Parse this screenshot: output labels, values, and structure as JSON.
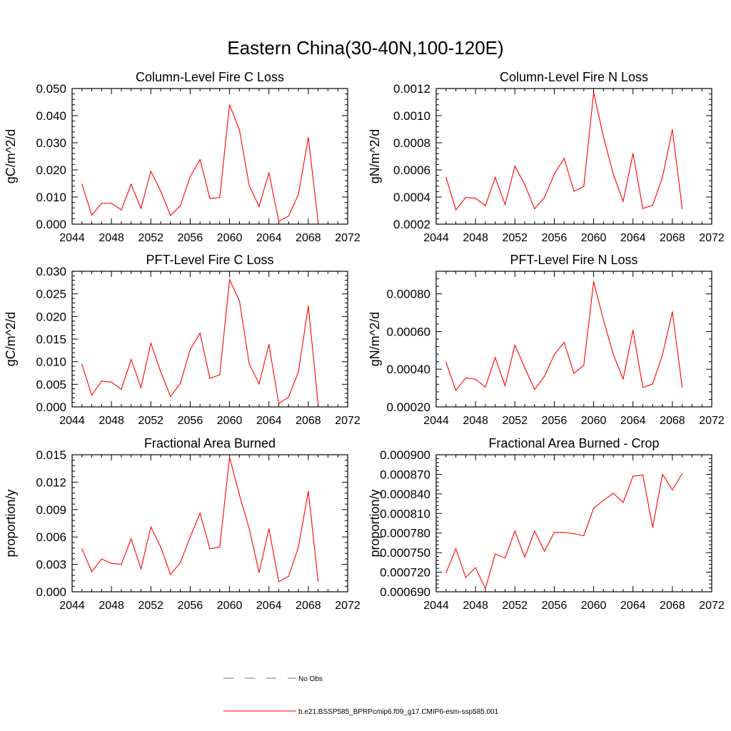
{
  "figure": {
    "title": "Eastern China(30-40N,100-120E)"
  },
  "colors": {
    "series": "#ff0000",
    "no_obs": "#6f6fb0",
    "axis": "#000000"
  },
  "legend": {
    "placement": "bottom-center",
    "entries": [
      {
        "label": "No Obs",
        "style": "dashed",
        "color": "#6f6fb0"
      },
      {
        "label": "b.e21.BSSP585_BPRPcmip6.f09_g17.CMIP6-esm-ssp585.001",
        "style": "solid",
        "color": "#ff0000"
      }
    ]
  },
  "chart_data": [
    {
      "type": "line",
      "title": "Column-Level Fire C Loss",
      "ylabel": "gC/m^2/d",
      "xlim": [
        2044,
        2072
      ],
      "ylim": [
        0.0,
        0.05
      ],
      "xticks": [
        "2044",
        "2048",
        "2052",
        "2056",
        "2060",
        "2064",
        "2068",
        "2072"
      ],
      "yticks": [
        "0.000",
        "0.010",
        "0.020",
        "0.030",
        "0.040",
        "0.050"
      ],
      "grid": false,
      "series": [
        {
          "x": [
            2045,
            2046,
            2047,
            2048,
            2049,
            2050,
            2051,
            2052,
            2053,
            2054,
            2055,
            2056,
            2057,
            2058,
            2059,
            2060,
            2061,
            2062,
            2063,
            2064,
            2065,
            2066,
            2067,
            2068,
            2069
          ],
          "values": [
            0.0148,
            0.0033,
            0.0077,
            0.0077,
            0.0053,
            0.0147,
            0.0058,
            0.0195,
            0.0122,
            0.0032,
            0.0068,
            0.0175,
            0.0238,
            0.0095,
            0.0098,
            0.044,
            0.0348,
            0.0142,
            0.0065,
            0.019,
            0.001,
            0.003,
            0.011,
            0.032,
            0.0008
          ]
        }
      ]
    },
    {
      "type": "line",
      "title": "Column-Level Fire N Loss",
      "ylabel": "gN/m^2/d",
      "xlim": [
        2044,
        2072
      ],
      "ylim": [
        0.0002,
        0.0012
      ],
      "xticks": [
        "2044",
        "2048",
        "2052",
        "2056",
        "2060",
        "2064",
        "2068",
        "2072"
      ],
      "yticks": [
        "0.0002",
        "0.0004",
        "0.0006",
        "0.0008",
        "0.0010",
        "0.0012"
      ],
      "grid": false,
      "series": [
        {
          "x": [
            2045,
            2046,
            2047,
            2048,
            2049,
            2050,
            2051,
            2052,
            2053,
            2054,
            2055,
            2056,
            2057,
            2058,
            2059,
            2060,
            2061,
            2062,
            2063,
            2064,
            2065,
            2066,
            2067,
            2068,
            2069
          ],
          "values": [
            0.000545,
            0.000305,
            0.000397,
            0.000392,
            0.000335,
            0.000545,
            0.000345,
            0.000628,
            0.000493,
            0.000313,
            0.000397,
            0.000567,
            0.000685,
            0.000442,
            0.000478,
            0.00117,
            0.000845,
            0.000568,
            0.000368,
            0.00072,
            0.000315,
            0.00034,
            0.000548,
            0.000897,
            0.000315
          ]
        }
      ]
    },
    {
      "type": "line",
      "title": "PFT-Level Fire C Loss",
      "ylabel": "gC/m^2/d",
      "xlim": [
        2044,
        2072
      ],
      "ylim": [
        0.0,
        0.03
      ],
      "xticks": [
        "2044",
        "2048",
        "2052",
        "2056",
        "2060",
        "2064",
        "2068",
        "2072"
      ],
      "yticks": [
        "0.000",
        "0.005",
        "0.010",
        "0.015",
        "0.020",
        "0.025",
        "0.030"
      ],
      "grid": false,
      "series": [
        {
          "x": [
            2045,
            2046,
            2047,
            2048,
            2049,
            2050,
            2051,
            2052,
            2053,
            2054,
            2055,
            2056,
            2057,
            2058,
            2059,
            2060,
            2061,
            2062,
            2063,
            2064,
            2065,
            2066,
            2067,
            2068,
            2069
          ],
          "values": [
            0.0094,
            0.0026,
            0.0057,
            0.0055,
            0.0039,
            0.0105,
            0.0043,
            0.0141,
            0.0078,
            0.0023,
            0.0052,
            0.0127,
            0.0163,
            0.0063,
            0.0071,
            0.0281,
            0.0235,
            0.0095,
            0.0051,
            0.0138,
            0.0007,
            0.0022,
            0.0078,
            0.0223,
            0.0006
          ]
        }
      ]
    },
    {
      "type": "line",
      "title": "PFT-Level Fire N Loss",
      "ylabel": "gN/m^2/d",
      "xlim": [
        2044,
        2072
      ],
      "ylim": [
        0.0002,
        0.00092
      ],
      "xticks": [
        "2044",
        "2048",
        "2052",
        "2056",
        "2060",
        "2064",
        "2068",
        "2072"
      ],
      "yticks": [
        "0.00020",
        "0.00040",
        "0.00060",
        "0.00080"
      ],
      "grid": false,
      "series": [
        {
          "x": [
            2045,
            2046,
            2047,
            2048,
            2049,
            2050,
            2051,
            2052,
            2053,
            2054,
            2055,
            2056,
            2057,
            2058,
            2059,
            2060,
            2061,
            2062,
            2063,
            2064,
            2065,
            2066,
            2067,
            2068,
            2069
          ],
          "values": [
            0.000437,
            0.000287,
            0.000355,
            0.000347,
            0.000305,
            0.000462,
            0.000312,
            0.000528,
            0.000408,
            0.000292,
            0.000362,
            0.000477,
            0.000542,
            0.000378,
            0.000422,
            0.000865,
            0.000662,
            0.000478,
            0.000348,
            0.000607,
            0.000303,
            0.000322,
            0.000478,
            0.000705,
            0.000305
          ]
        }
      ]
    },
    {
      "type": "line",
      "title": "Fractional Area Burned",
      "ylabel": "proportion/y",
      "xlim": [
        2044,
        2072
      ],
      "ylim": [
        0.0,
        0.015
      ],
      "xticks": [
        "2044",
        "2048",
        "2052",
        "2056",
        "2060",
        "2064",
        "2068",
        "2072"
      ],
      "yticks": [
        "0.000",
        "0.003",
        "0.006",
        "0.009",
        "0.012",
        "0.015"
      ],
      "grid": false,
      "series": [
        {
          "x": [
            2045,
            2046,
            2047,
            2048,
            2049,
            2050,
            2051,
            2052,
            2053,
            2054,
            2055,
            2056,
            2057,
            2058,
            2059,
            2060,
            2061,
            2062,
            2063,
            2064,
            2065,
            2066,
            2067,
            2068,
            2069
          ],
          "values": [
            0.0047,
            0.0022,
            0.0036,
            0.0031,
            0.003,
            0.0058,
            0.0025,
            0.0071,
            0.0049,
            0.0019,
            0.0032,
            0.006,
            0.0086,
            0.0047,
            0.0049,
            0.0147,
            0.0106,
            0.0069,
            0.0021,
            0.0069,
            0.0011,
            0.0017,
            0.0049,
            0.011,
            0.0012
          ]
        }
      ]
    },
    {
      "type": "line",
      "title": "Fractional Area Burned - Crop",
      "ylabel": "proportion/y",
      "xlim": [
        2044,
        2072
      ],
      "ylim": [
        0.00069,
        0.0009
      ],
      "xticks": [
        "2044",
        "2048",
        "2052",
        "2056",
        "2060",
        "2064",
        "2068",
        "2072"
      ],
      "yticks": [
        "0.000690",
        "0.000720",
        "0.000750",
        "0.000780",
        "0.000810",
        "0.000840",
        "0.000870",
        "0.000900"
      ],
      "grid": false,
      "series": [
        {
          "x": [
            2045,
            2046,
            2047,
            2048,
            2049,
            2050,
            2051,
            2052,
            2053,
            2054,
            2055,
            2056,
            2057,
            2058,
            2059,
            2060,
            2061,
            2062,
            2063,
            2064,
            2065,
            2066,
            2067,
            2068,
            2069
          ],
          "values": [
            0.000719,
            0.000756,
            0.000712,
            0.000727,
            0.000695,
            0.000748,
            0.000742,
            0.000783,
            0.000743,
            0.000783,
            0.000752,
            0.000781,
            0.000781,
            0.000779,
            0.000776,
            0.000818,
            0.00083,
            0.000841,
            0.000827,
            0.000867,
            0.000869,
            0.000789,
            0.00087,
            0.000846,
            0.000871
          ]
        }
      ]
    }
  ]
}
